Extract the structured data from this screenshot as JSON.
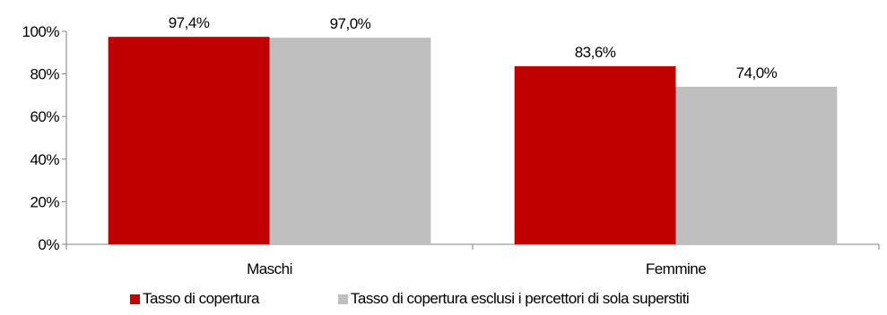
{
  "chart_data": {
    "type": "bar",
    "categories": [
      "Maschi",
      "Femmine"
    ],
    "series": [
      {
        "name": "Tasso di copertura",
        "values": [
          97.4,
          83.6
        ],
        "labels": [
          "97,4%",
          "83,6%"
        ],
        "color": "#c00000"
      },
      {
        "name": "Tasso di copertura esclusi i percettori di sola superstiti",
        "values": [
          97.0,
          74.0
        ],
        "labels": [
          "97,0%",
          "74,0%"
        ],
        "color": "#bfbfbf"
      }
    ],
    "ylim": [
      0,
      100
    ],
    "yticks": [
      0,
      20,
      40,
      60,
      80,
      100
    ],
    "ytick_labels": [
      "0%",
      "20%",
      "40%",
      "60%",
      "80%",
      "100%"
    ],
    "title": "",
    "xlabel": "",
    "ylabel": "",
    "grid": false,
    "legend_position": "bottom"
  }
}
